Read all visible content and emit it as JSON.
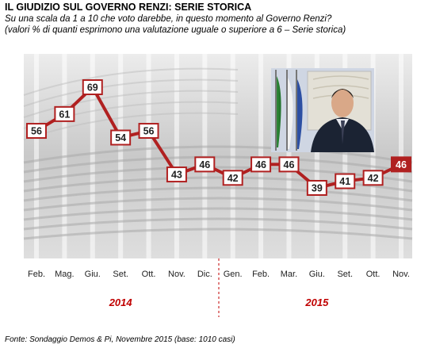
{
  "header": {
    "title": "IL GIUDIZIO  SUL GOVERNO RENZI: SERIE STORICA",
    "subtitle_line1": "Su una scala da 1 a 10 che voto darebbe, in questo momento al Governo Renzi?",
    "subtitle_line2": "(valori % di quanti esprimono una valutazione uguale o superiore a 6 – Serie storica)"
  },
  "footer": {
    "source": "Fonte: Sondaggio Demos & Pi, Novembre 2015 (base: 1010 casi)"
  },
  "colors": {
    "line": "#b02020",
    "box_border": "#b02020",
    "highlight_fill": "#b02020",
    "year_label": "#c00000",
    "background_photo": "#d9d9d9"
  },
  "chart_data": {
    "type": "line",
    "categories": [
      "Feb.",
      "Mag.",
      "Giu.",
      "Set.",
      "Ott.",
      "Nov.",
      "Dic.",
      "Gen.",
      "Feb.",
      "Mar.",
      "Giu.",
      "Set.",
      "Ott.",
      "Nov."
    ],
    "values": [
      56,
      61,
      69,
      54,
      56,
      43,
      46,
      42,
      46,
      46,
      39,
      41,
      42,
      46
    ],
    "data_labels": [
      "56",
      "61",
      "69",
      "54",
      "56",
      "43",
      "46",
      "42",
      "46",
      "46",
      "39",
      "41",
      "42",
      "46"
    ],
    "years": [
      {
        "label": "2014",
        "start_index": 0,
        "end_index": 6
      },
      {
        "label": "2015",
        "start_index": 7,
        "end_index": 13
      }
    ],
    "highlight_index": 13,
    "ylim": [
      30,
      75
    ],
    "grid": false,
    "title": "",
    "xlabel": "",
    "ylabel": ""
  }
}
